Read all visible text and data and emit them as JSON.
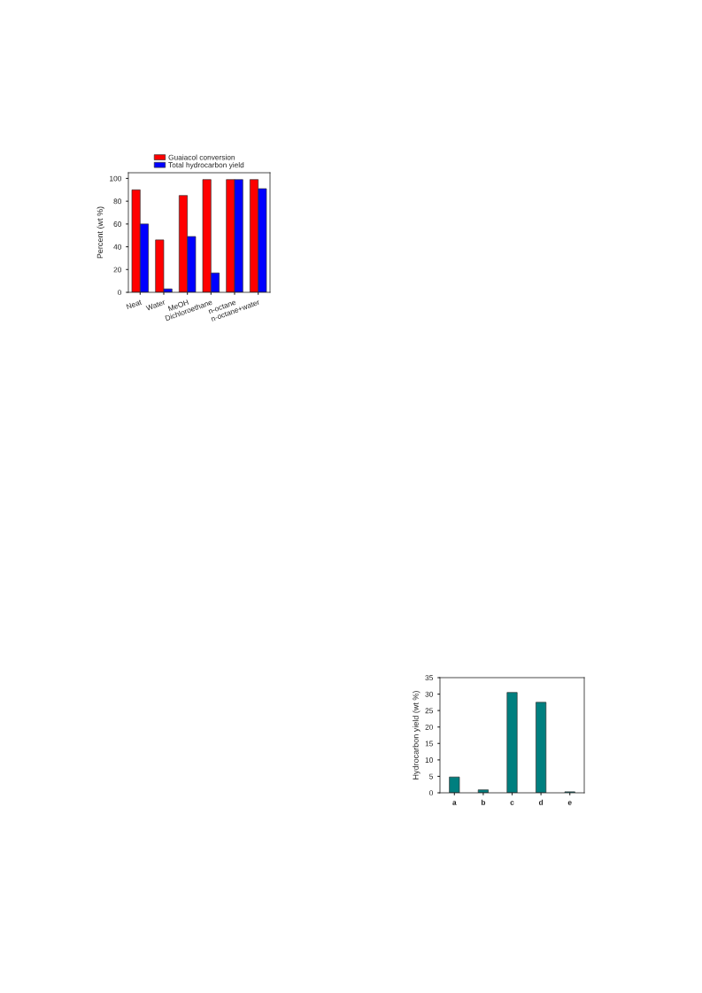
{
  "chart_data": [
    {
      "type": "bar",
      "ylabel": "Percent (wt %)",
      "categories": [
        "Neat",
        "Water",
        "MeOH",
        "Dichloroethane",
        "n-octane",
        "n-octane+water"
      ],
      "series": [
        {
          "name": "Guaiacol conversion",
          "color": "#ff0000",
          "values": [
            90,
            46,
            85,
            99,
            99,
            99
          ]
        },
        {
          "name": "Total hydrocarbon yield",
          "color": "#0000ff",
          "values": [
            60,
            3,
            49,
            17,
            99,
            91
          ]
        }
      ],
      "ylim": [
        0,
        105
      ],
      "yticks": [
        0,
        20,
        40,
        60,
        80,
        100
      ],
      "legend": "top"
    },
    {
      "type": "bar",
      "ylabel": "Hydrocarbon yield (wt %)",
      "categories": [
        "a",
        "b",
        "c",
        "d",
        "e"
      ],
      "series": [
        {
          "color": "#007f7f",
          "values": [
            4.8,
            0.9,
            30.5,
            27.5,
            0.3
          ]
        }
      ],
      "ylim": [
        0,
        35
      ],
      "yticks": [
        0,
        5,
        10,
        15,
        20,
        25,
        30,
        35
      ]
    }
  ]
}
